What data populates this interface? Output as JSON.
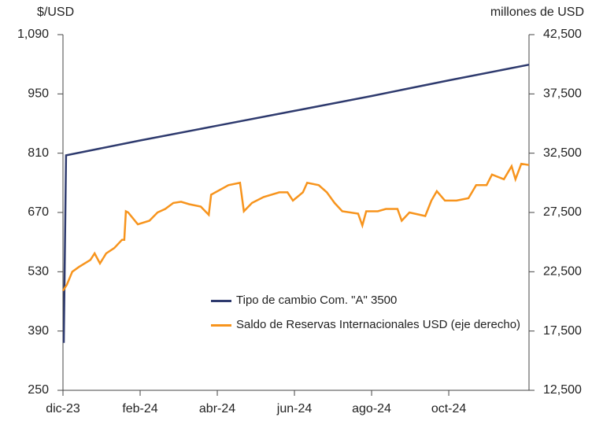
{
  "chart_data": {
    "type": "line",
    "y_label": "$/USD",
    "y2_label": "millones de USD",
    "xlim": [
      0,
      12.08
    ],
    "xticks": [
      {
        "value": 0,
        "label": "dic-23"
      },
      {
        "value": 2,
        "label": "feb-24"
      },
      {
        "value": 4,
        "label": "abr-24"
      },
      {
        "value": 6,
        "label": "jun-24"
      },
      {
        "value": 8,
        "label": "ago-24"
      },
      {
        "value": 10,
        "label": "oct-24"
      }
    ],
    "ylim": [
      250,
      1090
    ],
    "yticks": [
      250,
      390,
      530,
      670,
      810,
      950,
      {
        "value": 1090,
        "label": "1,090"
      }
    ],
    "y2lim": [
      12500,
      42500
    ],
    "y2ticks": [
      {
        "value": 12500,
        "label": "12,500"
      },
      {
        "value": 17500,
        "label": "17,500"
      },
      {
        "value": 22500,
        "label": "22,500"
      },
      {
        "value": 27500,
        "label": "27,500"
      },
      {
        "value": 32500,
        "label": "32,500"
      },
      {
        "value": 37500,
        "label": "37,500"
      },
      {
        "value": 42500,
        "label": "42,500"
      }
    ],
    "legend": "center",
    "series": [
      {
        "name": "Tipo de cambio Com. \"A\" 3500",
        "color": "#2e3a6e",
        "x": [
          0.02,
          0.08,
          2,
          4,
          6,
          8,
          10,
          12.08
        ],
        "values": [
          362,
          805,
          840,
          875,
          910,
          945,
          982,
          1019
        ]
      },
      {
        "name": "Saldo de Reservas Internacionales USD (eje derecho)",
        "color": "#f7941d",
        "axis": "y2",
        "x": [
          0,
          0.1,
          0.24,
          0.41,
          0.71,
          0.82,
          0.96,
          1.12,
          1.33,
          1.53,
          1.59,
          1.63,
          1.69,
          1.94,
          2.24,
          2.45,
          2.65,
          2.86,
          3.06,
          3.27,
          3.57,
          3.78,
          3.84,
          4.29,
          4.59,
          4.69,
          4.9,
          5.2,
          5.61,
          5.82,
          5.96,
          6.22,
          6.33,
          6.63,
          6.84,
          7.04,
          7.24,
          7.65,
          7.76,
          7.86,
          8.16,
          8.37,
          8.67,
          8.78,
          8.98,
          9.39,
          9.55,
          9.69,
          9.9,
          10.2,
          10.51,
          10.71,
          10.98,
          11.12,
          11.43,
          11.63,
          11.73,
          11.88,
          12.08
        ],
        "values": [
          20900,
          21400,
          22500,
          22900,
          23500,
          24050,
          23200,
          24050,
          24500,
          25200,
          25200,
          27600,
          27500,
          26500,
          26800,
          27500,
          27800,
          28300,
          28400,
          28200,
          28000,
          27300,
          29000,
          29800,
          30000,
          27600,
          28300,
          28800,
          29200,
          29200,
          28500,
          29200,
          30000,
          29800,
          29200,
          28300,
          27600,
          27400,
          26400,
          27600,
          27600,
          27800,
          27800,
          26800,
          27500,
          27200,
          28500,
          29300,
          28500,
          28500,
          28700,
          29800,
          29800,
          30700,
          30300,
          31400,
          30300,
          31600,
          31500
        ]
      }
    ]
  }
}
